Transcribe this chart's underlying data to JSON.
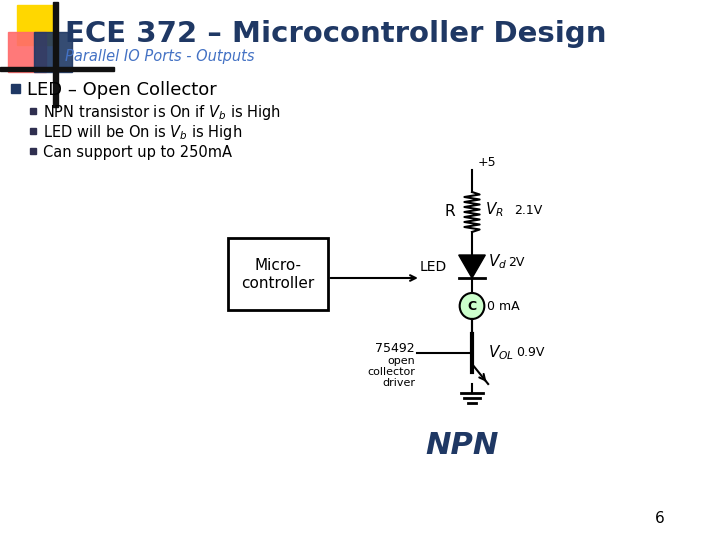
{
  "title": "ECE 372 – Microcontroller Design",
  "subtitle": "Parallel IO Ports - Outputs",
  "bg_color": "#ffffff",
  "title_color": "#1F3864",
  "subtitle_color": "#4472C4",
  "bullet_main": "LED – Open Collector",
  "bullets": [
    "NPN transistor is On if $V_b$ is High",
    "LED will be On is $V_b$ is High",
    "Can support up to 250mA"
  ],
  "bullet_color": "#000000",
  "page_number": "6",
  "npn_color": "#1F3864",
  "collector_circle_color": "#ccffcc",
  "vr_label": "2.1V",
  "vd_label": "2V",
  "ic_label": "0 mA",
  "vol_label": "0.9V",
  "plus5_label": "+5",
  "chip_label": "75492",
  "chip_sublabel": [
    "open",
    "collector",
    "driver"
  ]
}
